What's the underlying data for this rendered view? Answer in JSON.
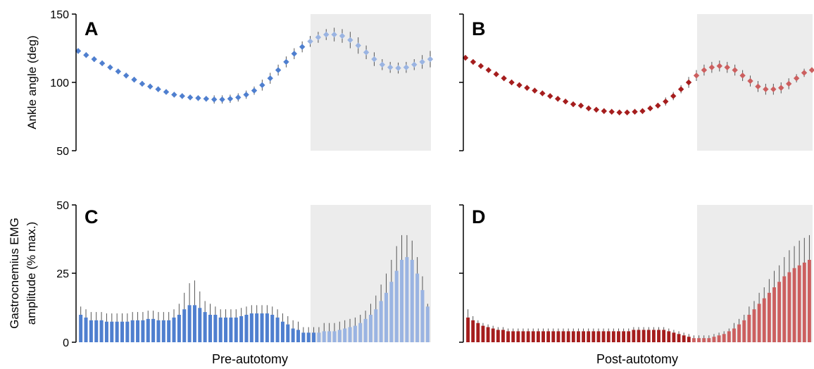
{
  "figure": {
    "ylabel_top": "Ankle angle (deg)",
    "ylabel_bottom_line1": "Gastrocnemius EMG",
    "ylabel_bottom_line2": "amplitude (% max.)",
    "xlabel_left": "Pre-autotomy",
    "xlabel_right": "Post-autotomy"
  },
  "colors": {
    "pre": "#4f7fcf",
    "pre_shaded": "#9ab4e2",
    "post": "#a51d1d",
    "post_shaded": "#cc5f5f",
    "shade": "#ececec",
    "errorbar": "#555555",
    "axis": "#000000"
  },
  "chart_data": [
    {
      "panel": "A",
      "type": "scatter",
      "ylim": [
        50,
        150
      ],
      "yticks": [
        "50",
        "100",
        "150"
      ],
      "shaded_start_index": 29,
      "values": [
        123,
        120,
        117,
        114,
        111,
        108,
        105,
        102,
        99,
        97,
        95,
        93,
        91,
        90,
        89,
        88.5,
        88,
        87.5,
        87.5,
        88,
        89,
        91,
        94,
        98,
        103,
        109,
        115,
        121,
        126,
        130,
        133,
        135,
        135,
        134,
        131,
        127,
        122,
        117,
        113,
        111,
        110.5,
        111,
        113,
        115,
        117
      ],
      "errors": [
        2,
        2,
        2,
        2,
        2,
        2,
        2,
        2,
        2,
        2,
        2,
        2,
        2,
        2,
        2,
        2,
        2,
        3,
        3,
        3,
        3,
        3,
        3,
        4,
        4,
        4,
        4,
        4,
        4,
        4,
        4,
        4,
        5,
        5,
        6,
        6,
        5,
        5,
        4,
        4,
        4,
        4,
        4,
        5,
        6
      ]
    },
    {
      "panel": "B",
      "type": "scatter",
      "ylim": [
        50,
        150
      ],
      "yticks": [],
      "shaded_start_index": 30,
      "values": [
        118,
        115,
        112,
        109,
        106,
        103,
        100,
        98,
        96,
        94,
        92,
        90,
        88,
        86,
        84,
        83,
        81,
        80,
        79,
        78.5,
        78,
        78,
        78.5,
        79,
        81,
        83,
        86,
        90,
        95,
        100,
        105,
        109,
        111,
        112,
        111,
        109,
        105,
        101,
        97,
        95,
        95,
        96,
        99,
        103,
        107,
        109
      ],
      "errors": [
        2,
        2,
        2,
        2,
        2,
        2,
        2,
        2,
        2,
        2,
        2,
        2,
        2,
        2,
        2,
        2,
        2,
        2,
        2,
        2,
        2,
        2,
        2,
        2,
        2,
        2,
        3,
        3,
        3,
        4,
        4,
        4,
        4,
        4,
        4,
        4,
        4,
        4,
        4,
        4,
        4,
        4,
        4,
        3,
        3,
        2
      ]
    },
    {
      "panel": "C",
      "type": "bar",
      "ylim": [
        0,
        50
      ],
      "yticks": [
        "0",
        "25",
        "50"
      ],
      "shaded_start_index": 46,
      "values": [
        10,
        9,
        8,
        8,
        8,
        7.5,
        7.5,
        7.5,
        7.5,
        7.5,
        8,
        8,
        8,
        8.5,
        8.5,
        8,
        8,
        8,
        9,
        10,
        12,
        13.5,
        13.5,
        12.5,
        11,
        10,
        10,
        9,
        9,
        9,
        9,
        9.5,
        10,
        10.5,
        10.5,
        10.5,
        10.5,
        10,
        9,
        7.5,
        6.5,
        5,
        4.5,
        3.5,
        3.5,
        3.5,
        3.5,
        4,
        4,
        4,
        4.5,
        5,
        5.5,
        6,
        7,
        8.5,
        10,
        12,
        15,
        18,
        22,
        26,
        30,
        31,
        30,
        25,
        19,
        13
      ],
      "errors": [
        3,
        3,
        3,
        3,
        3,
        3,
        3,
        3,
        3,
        3,
        3,
        3,
        3,
        3,
        3,
        3,
        3,
        3,
        3,
        4,
        6,
        8,
        9,
        6,
        4,
        4,
        3,
        3,
        3,
        3,
        3,
        3,
        3,
        3,
        3,
        3,
        3,
        3,
        3,
        3,
        3,
        3,
        3,
        2,
        2,
        2,
        2,
        3,
        3,
        3,
        3,
        3,
        3,
        3,
        3,
        3,
        4,
        5,
        6,
        7,
        8,
        9,
        9,
        8,
        7,
        6,
        5,
        1
      ]
    },
    {
      "panel": "D",
      "type": "bar",
      "ylim": [
        0,
        50
      ],
      "yticks": [],
      "shaded_start_index": 45,
      "values": [
        9,
        8,
        7,
        6,
        5.5,
        5,
        4.5,
        4.5,
        4,
        4,
        4,
        4,
        4,
        4,
        4,
        4,
        4,
        4,
        4,
        4,
        4,
        4,
        4,
        4,
        4,
        4,
        4,
        4,
        4,
        4,
        4,
        4,
        4,
        4.5,
        4.5,
        4.5,
        4.5,
        4.5,
        4.5,
        4.5,
        4,
        3.5,
        3,
        2.5,
        2,
        1.5,
        1.5,
        1.5,
        1.5,
        2,
        2.5,
        3,
        4,
        5,
        6.5,
        8,
        10,
        12,
        14,
        16,
        18,
        20,
        22,
        24,
        25.5,
        27,
        28,
        29,
        30
      ],
      "errors": [
        3,
        1.5,
        1,
        1,
        1,
        1,
        1,
        1,
        1,
        1,
        1,
        1,
        1,
        1,
        1,
        1,
        1,
        1,
        1,
        1,
        1,
        1,
        1,
        1,
        1,
        1,
        1,
        1,
        1,
        1,
        1,
        1,
        1,
        1,
        1,
        1,
        1,
        1,
        1,
        1,
        1,
        1,
        1,
        1,
        1,
        1,
        1,
        1,
        1,
        1,
        1,
        1,
        1,
        2,
        2,
        2,
        3,
        3,
        4,
        4,
        5,
        6,
        6,
        7,
        8,
        8,
        9,
        9,
        9
      ]
    }
  ]
}
